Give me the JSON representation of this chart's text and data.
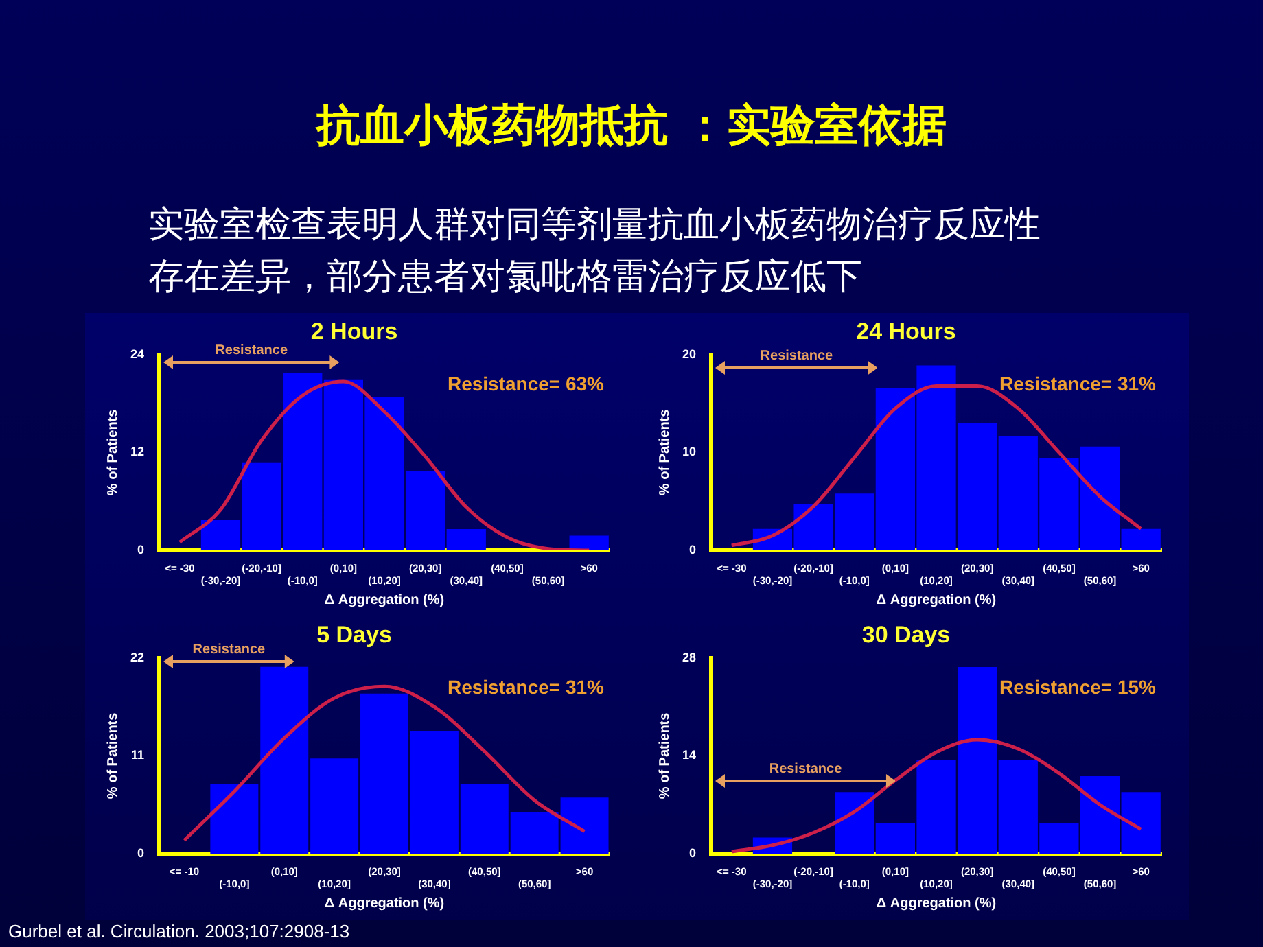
{
  "chart_data": [
    {
      "type": "other",
      "title": "抗血小板药物抵抗 ：实验室依据",
      "subtitle": "实验室检查表明人群对同等剂量抗血小板药物治疗反应性存在差异，部分患者对氯吡格雷治疗反应低下",
      "annotations": [
        "Gurbel et al. Circulation. 2003;107:2908-13"
      ]
    },
    {
      "type": "bar",
      "title": "2 Hours",
      "xlabel": "Δ Aggregation (%)",
      "ylabel": "% of Patients",
      "categories": [
        "<= -30",
        "(-30,-20]",
        "(-20,-10]",
        "(-10,0]",
        "(0,10]",
        "(10,20]",
        "(20,30]",
        "(30,40]",
        "(40,50]",
        "(50,60]",
        ">60"
      ],
      "series": [
        {
          "color": "#0000ff",
          "values": [
            0,
            3.7,
            10.8,
            21.8,
            20.9,
            18.8,
            9.7,
            2.6,
            0,
            0,
            1.8
          ]
        },
        {
          "type": "line",
          "color": "#cc1f4a",
          "values": [
            1,
            5,
            13.5,
            19,
            20.7,
            17,
            11.5,
            5.3,
            1.6,
            0.2,
            0
          ]
        }
      ],
      "ylim": [
        0,
        24
      ],
      "yticks": [
        0,
        12,
        24
      ],
      "annotations": [
        "Resistance",
        "Resistance= 63%"
      ]
    },
    {
      "type": "bar",
      "title": "24 Hours",
      "xlabel": "Δ Aggregation (%)",
      "ylabel": "% of Patients",
      "categories": [
        "<= -30",
        "(-30,-20]",
        "(-20,-10]",
        "(-10,0]",
        "(0,10]",
        "(10,20]",
        "(20,30]",
        "(30,40]",
        "(40,50]",
        "(50,60]",
        ">60"
      ],
      "series": [
        {
          "color": "#0000ff",
          "values": [
            0,
            2.2,
            4.7,
            5.8,
            16.6,
            18.9,
            13,
            11.7,
            9.4,
            10.6,
            2.2
          ]
        },
        {
          "type": "line",
          "color": "#cc1f4a",
          "values": [
            0.5,
            1.5,
            4.5,
            9.5,
            14.5,
            16.8,
            16.8,
            14.5,
            10,
            5.5,
            2.2
          ]
        }
      ],
      "ylim": [
        0,
        20
      ],
      "yticks": [
        0,
        10,
        20
      ],
      "annotations": [
        "Resistance",
        "Resistance= 31%"
      ]
    },
    {
      "type": "bar",
      "title": "5 Days",
      "xlabel": "Δ Aggregation (%)",
      "ylabel": "% of Patients",
      "categories": [
        "<= -10",
        "(-10,0]",
        "(0,10]",
        "(10,20]",
        "(20,30]",
        "(30,40]",
        "(40,50]",
        "(50,60]",
        ">60"
      ],
      "series": [
        {
          "color": "#0000ff",
          "values": [
            0,
            7.8,
            21,
            10.7,
            18,
            13.8,
            7.8,
            4.7,
            6.3
          ]
        },
        {
          "type": "line",
          "color": "#cc1f4a",
          "values": [
            1.5,
            7,
            13,
            17.5,
            18.8,
            16.5,
            11.5,
            6,
            2.5
          ]
        }
      ],
      "ylim": [
        0,
        22
      ],
      "yticks": [
        0,
        11,
        22
      ],
      "annotations": [
        "Resistance",
        "Resistance= 31%"
      ]
    },
    {
      "type": "bar",
      "title": "30 Days",
      "xlabel": "Δ Aggregation (%)",
      "ylabel": "% of Patients",
      "categories": [
        "<= -30",
        "(-30,-20]",
        "(-20,-10]",
        "(-10,0]",
        "(0,10]",
        "(10,20]",
        "(20,30]",
        "(30,40]",
        "(40,50]",
        "(50,60]",
        ">60"
      ],
      "series": [
        {
          "color": "#0000ff",
          "values": [
            0,
            2.3,
            0,
            8.8,
            4.4,
            13.4,
            26.7,
            13.4,
            4.4,
            11.1,
            8.8
          ]
        },
        {
          "type": "line",
          "color": "#cc1f4a",
          "values": [
            0.3,
            1.2,
            3,
            6,
            10.5,
            14.5,
            16.3,
            15,
            11.5,
            7,
            3.5
          ]
        }
      ],
      "ylim": [
        0,
        28
      ],
      "yticks": [
        0,
        14,
        28
      ],
      "annotations": [
        "Resistance",
        "Resistance= 15%"
      ]
    }
  ]
}
